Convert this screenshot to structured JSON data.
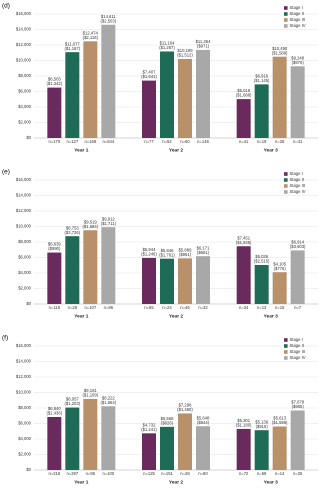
{
  "chart_data": [
    {
      "type": "bar",
      "panel_label": "(d)",
      "categories": [
        "Year 1",
        "Year 2",
        "Year 3"
      ],
      "ylim": [
        0,
        16000
      ],
      "yticks": [
        {
          "value": 0,
          "label": "$0"
        },
        {
          "value": 2000,
          "label": "$2,000"
        },
        {
          "value": 4000,
          "label": "$4,000"
        },
        {
          "value": 6000,
          "label": "$6,000"
        },
        {
          "value": 8000,
          "label": "$8,000"
        },
        {
          "value": 10000,
          "label": "$10,000"
        },
        {
          "value": 12000,
          "label": "$12,000"
        },
        {
          "value": 14000,
          "label": "$14,000"
        },
        {
          "value": 16000,
          "label": "$16,000"
        }
      ],
      "legend": "upper right",
      "series": [
        {
          "name": "Stage I",
          "color": "#6a2a5e",
          "values": [
            6503,
            7407,
            5018
          ],
          "value_labels": [
            "$6,503",
            "$7,407",
            "$5,018"
          ],
          "se_labels": [
            "($1,342)",
            "($1,641)",
            "($1,688)"
          ],
          "n_labels": [
            "n=170",
            "n=77",
            "n=41"
          ]
        },
        {
          "name": "Stage II",
          "color": "#1e6b57",
          "values": [
            11077,
            11164,
            6916
          ],
          "value_labels": [
            "$11,077",
            "$11,164",
            "$6,916"
          ],
          "se_labels": [
            "($1,167)",
            "($1,267)",
            "($1,145)"
          ],
          "n_labels": [
            "n=127",
            "n=52",
            "n=19"
          ]
        },
        {
          "name": "Stage III",
          "color": "#b8906a",
          "values": [
            12474,
            10199,
            10490
          ],
          "value_labels": [
            "$12,474",
            "$10,199",
            "$10,490"
          ],
          "se_labels": [
            "($2,116)",
            "($1,512)",
            "($1,589)"
          ],
          "n_labels": [
            "n=169",
            "n=60",
            "n=26"
          ]
        },
        {
          "name": "Stage IV",
          "color": "#a8a8a8",
          "values": [
            14611,
            11364,
            9248
          ],
          "value_labels": [
            "$14,611",
            "$11,364",
            "$9,248"
          ],
          "se_labels": [
            "($2,503)",
            "($971)",
            "($976)"
          ],
          "n_labels": [
            "n=544",
            "n=148",
            "n=41"
          ]
        }
      ]
    },
    {
      "type": "bar",
      "panel_label": "(e)",
      "categories": [
        "Year 1",
        "Year 2",
        "Year 3"
      ],
      "ylim": [
        0,
        16000
      ],
      "yticks": [
        {
          "value": 0,
          "label": "$0"
        },
        {
          "value": 2000,
          "label": "$2,000"
        },
        {
          "value": 4000,
          "label": "$4,000"
        },
        {
          "value": 6000,
          "label": "$6,000"
        },
        {
          "value": 8000,
          "label": "$8,000"
        },
        {
          "value": 10000,
          "label": "$10,000"
        },
        {
          "value": 12000,
          "label": "$12,000"
        },
        {
          "value": 14000,
          "label": "$14,000"
        },
        {
          "value": 16000,
          "label": "$16,000"
        }
      ],
      "legend": "upper right",
      "series": [
        {
          "name": "Stage I",
          "color": "#6a2a5e",
          "values": [
            6639,
            5944,
            7451
          ],
          "value_labels": [
            "$6,639",
            "$5,944",
            "$7,451"
          ],
          "se_labels": [
            "($990)",
            "($1,246)",
            "($1,645)"
          ],
          "n_labels": [
            "n=116",
            "n=65",
            "n=34"
          ]
        },
        {
          "name": "Stage II",
          "color": "#1e6b57",
          "values": [
            8753,
            5846,
            5036
          ],
          "value_labels": [
            "$8,753",
            "$5,846",
            "$5,036"
          ],
          "se_labels": [
            "($3,726)",
            "($1,761)",
            "($2,515)"
          ],
          "n_labels": [
            "n=26",
            "n=24",
            "n=13"
          ]
        },
        {
          "name": "Stage III",
          "color": "#b8906a",
          "values": [
            9519,
            5889,
            4105
          ],
          "value_labels": [
            "$9,519",
            "$5,889",
            "$4,105"
          ],
          "se_labels": [
            "($1,584)",
            "($961)",
            "($776)"
          ],
          "n_labels": [
            "n=107",
            "n=46",
            "n=15"
          ]
        },
        {
          "name": "Stage IV",
          "color": "#a8a8a8",
          "values": [
            9912,
            6171,
            6914
          ],
          "value_labels": [
            "$9,912",
            "$6,171",
            "$6,914"
          ],
          "se_labels": [
            "($1,711)",
            "($681)",
            "($3,603)"
          ],
          "n_labels": [
            "n=96",
            "n=32",
            "n=7"
          ]
        }
      ]
    },
    {
      "type": "bar",
      "panel_label": "(f)",
      "categories": [
        "Year 1",
        "Year 2",
        "Year 3"
      ],
      "ylim": [
        0,
        16000
      ],
      "yticks": [
        {
          "value": 0,
          "label": "$0"
        },
        {
          "value": 2000,
          "label": "$2,000"
        },
        {
          "value": 4000,
          "label": "$4,000"
        },
        {
          "value": 6000,
          "label": "$6,000"
        },
        {
          "value": 8000,
          "label": "$8,000"
        },
        {
          "value": 10000,
          "label": "$10,000"
        },
        {
          "value": 12000,
          "label": "$12,000"
        },
        {
          "value": 14000,
          "label": "$14,000"
        },
        {
          "value": 16000,
          "label": "$16,000"
        }
      ],
      "legend": "upper right",
      "series": [
        {
          "name": "Stage I",
          "color": "#6a2a5e",
          "values": [
            6840,
            4732,
            5301
          ],
          "value_labels": [
            "$6,840",
            "$4,732",
            "$5,301"
          ],
          "se_labels": [
            "($1,436)",
            "($1,241)",
            "($1,180)"
          ],
          "n_labels": [
            "n=216",
            "n=125",
            "n=72"
          ]
        },
        {
          "name": "Stage II",
          "color": "#1e6b57",
          "values": [
            8057,
            5568,
            5136
          ],
          "value_labels": [
            "$8,057",
            "$5,568",
            "$5,136"
          ],
          "se_labels": [
            "($1,203)",
            "($826)",
            "($916)"
          ],
          "n_labels": [
            "n=297",
            "n=151",
            "n=59"
          ]
        },
        {
          "name": "Stage III",
          "color": "#b8906a",
          "values": [
            9161,
            7298,
            5613
          ],
          "value_labels": [
            "$9,161",
            "$7,298",
            "$5,613"
          ],
          "se_labels": [
            "($1,109)",
            "($1,460)",
            "($1,599)"
          ],
          "n_labels": [
            "n=95",
            "n=28",
            "n=14"
          ]
        },
        {
          "name": "Stage IV",
          "color": "#a8a8a8",
          "values": [
            8222,
            5648,
            7678
          ],
          "value_labels": [
            "$8,222",
            "$5,648",
            "$7,678"
          ],
          "se_labels": [
            "($1,664)",
            "($944)",
            "($985)"
          ],
          "n_labels": [
            "n=100",
            "n=60",
            "n=25"
          ]
        }
      ]
    }
  ]
}
